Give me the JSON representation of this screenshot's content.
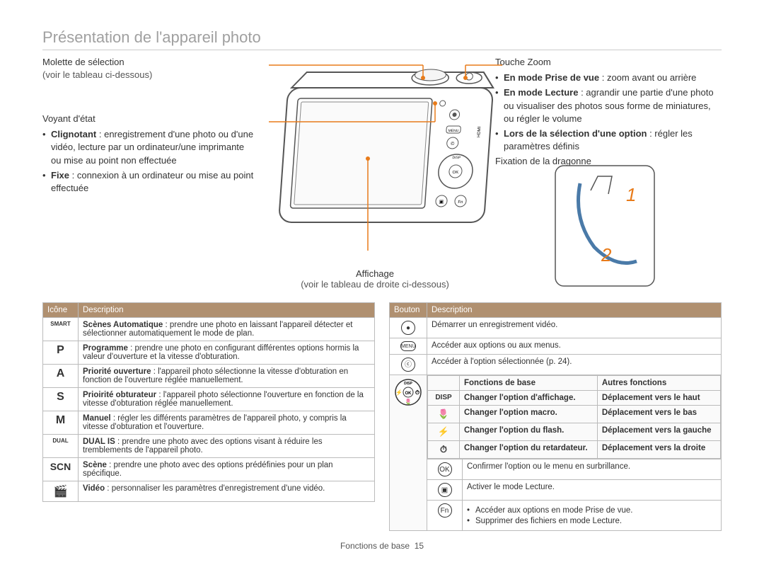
{
  "page_title": "Présentation de l'appareil photo",
  "colors": {
    "accent": "#e87b1a",
    "table_header_bg": "#b09070",
    "table_header_text": "#ffffff",
    "title_color": "#a0a0a0",
    "text_color": "#333333",
    "border_color": "#bbbbbb"
  },
  "callouts": {
    "mode_dial": {
      "title": "Molette de sélection",
      "sub": "(voir le tableau ci-dessous)"
    },
    "status_led": {
      "title": "Voyant d'état",
      "bullets": [
        {
          "bold": "Clignotant",
          "text": " : enregistrement d'une photo ou d'une vidéo, lecture par un ordinateur/une imprimante ou mise au point non effectuée"
        },
        {
          "bold": "Fixe",
          "text": " : connexion à un ordinateur ou mise au point effectuée"
        }
      ]
    },
    "display": {
      "title": "Affichage",
      "sub": "(voir le tableau de droite ci-dessous)"
    },
    "zoom": {
      "title": "Touche Zoom",
      "bullets": [
        {
          "bold": "En mode Prise de vue",
          "text": " : zoom avant ou arrière"
        },
        {
          "bold": "En mode Lecture",
          "text": " : agrandir une partie d'une photo ou visualiser des photos sous forme de miniatures, ou régler le volume"
        },
        {
          "bold": "Lors de la sélection d'une option",
          "text": " : régler les paramètres définis"
        }
      ]
    },
    "strap": {
      "title": "Fixation de la dragonne"
    }
  },
  "left_table": {
    "head": [
      "Icône",
      "Description"
    ],
    "rows": [
      {
        "icon": "SMART",
        "icon_style": "tiny",
        "bold": "Scènes Automatique",
        "text": " : prendre une photo en laissant l'appareil détecter et sélectionner automatiquement le mode de plan."
      },
      {
        "icon": "P",
        "bold": "Programme",
        "text": " : prendre une photo en configurant différentes options hormis la valeur d'ouverture et la vitesse d'obturation."
      },
      {
        "icon": "A",
        "bold": "Priorité ouverture",
        "text": " : l'appareil photo sélectionne la vitesse d'obturation en fonction de l'ouverture réglée manuellement."
      },
      {
        "icon": "S",
        "bold": "Prioirité obturateur",
        "text": " : l'appareil photo sélectionne l'ouverture en fonction de la vitesse d'obturation réglée manuellement."
      },
      {
        "icon": "M",
        "bold": "Manuel",
        "text": " : régler les différents paramètres de l'appareil photo, y compris la vitesse d'obturation et l'ouverture."
      },
      {
        "icon": "DUAL",
        "icon_style": "tiny",
        "bold": "DUAL IS",
        "text": " : prendre une photo avec des options visant à réduire les tremblements de l'appareil photo."
      },
      {
        "icon": "SCN",
        "icon_style": "scn",
        "bold": "Scène",
        "text": " : prendre une photo avec des options prédéfinies pour un plan spécifique."
      },
      {
        "icon": "🎬",
        "bold": "Vidéo",
        "text": " : personnaliser les paramètres d'enregistrement d'une vidéo."
      }
    ]
  },
  "right_table": {
    "head": [
      "Bouton",
      "Description"
    ],
    "simple_rows": [
      {
        "btn": "●",
        "text": "Démarrer un enregistrement vidéo."
      },
      {
        "btn": "MENU",
        "text": "Accéder aux options ou aux menus."
      },
      {
        "btn": "ⓒ",
        "text": "Accéder à l'option sélectionnée (p. 24)."
      }
    ],
    "nav": {
      "subhead": [
        "",
        "Fonctions de base",
        "Autres fonctions"
      ],
      "rows": [
        {
          "icon": "DISP",
          "base": "Changer l'option d'affichage.",
          "other": "Déplacement vers le haut"
        },
        {
          "icon": "🌷",
          "base": "Changer l'option macro.",
          "other": "Déplacement vers le bas"
        },
        {
          "icon": "⚡",
          "base": "Changer l'option du flash.",
          "other": "Déplacement vers la gauche"
        },
        {
          "icon": "⏱",
          "base": "Changer l'option du retardateur.",
          "other": "Déplacement vers la droite"
        }
      ]
    },
    "tail_rows": [
      {
        "btn": "OK",
        "text": "Confirmer l'option ou le menu en surbrillance."
      },
      {
        "btn": "▣",
        "text": "Activer le mode Lecture."
      },
      {
        "btn": "Fn",
        "bullets": [
          "Accéder aux options en mode Prise de vue.",
          "Supprimer des fichiers en mode Lecture."
        ]
      }
    ]
  },
  "footer": {
    "label": "Fonctions de base",
    "page": "15"
  }
}
